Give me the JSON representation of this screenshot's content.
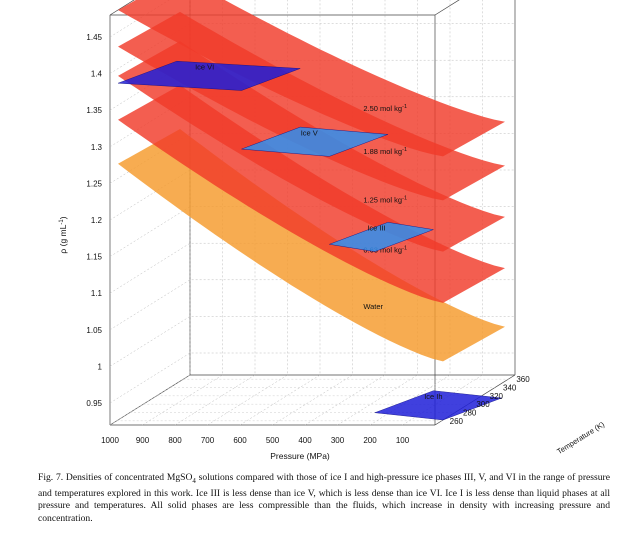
{
  "chart_data": {
    "type": "3d-surface",
    "xlabel": "Pressure (MPa)",
    "ylabel": "ρ (g mL",
    "ylabel_sup": "-1",
    "ylabel_close": ")",
    "zlabel": "Temperature (K)",
    "x_ticks": [
      "1000",
      "900",
      "800",
      "700",
      "600",
      "500",
      "400",
      "300",
      "200",
      "100"
    ],
    "y_ticks": [
      "0.95",
      "1",
      "1.05",
      "1.1",
      "1.15",
      "1.2",
      "1.25",
      "1.3",
      "1.35",
      "1.4",
      "1.45"
    ],
    "z_ticks": [
      "260",
      "280",
      "300",
      "320",
      "340",
      "360"
    ],
    "xlim": [
      0,
      1000
    ],
    "ylim": [
      0.92,
      1.48
    ],
    "zlim": [
      250,
      370
    ],
    "grid": true,
    "colors": {
      "fluid": "#f03a2a",
      "water": "#f59a2b",
      "ice_dark": "#1f1fd8",
      "ice_light": "#2f8ff0"
    },
    "series": [
      {
        "name": "2.50 mol kg",
        "sup": "-1",
        "kind": "fluid",
        "density_at_0MPa": 1.28,
        "density_at_1000MPa": 1.48
      },
      {
        "name": "1.88 mol kg",
        "sup": "-1",
        "kind": "fluid",
        "density_at_0MPa": 1.22,
        "density_at_1000MPa": 1.43
      },
      {
        "name": "1.25 mol kg",
        "sup": "-1",
        "kind": "fluid",
        "density_at_0MPa": 1.15,
        "density_at_1000MPa": 1.39
      },
      {
        "name": "0.63 mol kg",
        "sup": "-1",
        "kind": "fluid",
        "density_at_0MPa": 1.08,
        "density_at_1000MPa": 1.33
      },
      {
        "name": "Water",
        "sup": "",
        "kind": "water",
        "density_at_0MPa": 1.0,
        "density_at_1000MPa": 1.27
      },
      {
        "name": "Ice VI",
        "sup": "",
        "kind": "ice",
        "pressure_range": [
          620,
          1000
        ],
        "density": 1.38
      },
      {
        "name": "Ice V",
        "sup": "",
        "kind": "ice",
        "pressure_range": [
          350,
          620
        ],
        "density": 1.29
      },
      {
        "name": "Ice III",
        "sup": "",
        "kind": "ice",
        "pressure_range": [
          210,
          350
        ],
        "density": 1.16
      },
      {
        "name": "Ice Ih",
        "sup": "",
        "kind": "ice",
        "pressure_range": [
          0,
          210
        ],
        "density": 0.93
      }
    ]
  },
  "caption": {
    "fig": "Fig. 7.",
    "text_a": " Densities of concentrated MgSO",
    "sub": "4",
    "text_b": " solutions compared with those of ice I and high-pressure ice phases III, V, and VI in the range of pressure and temperatures explored in this work. Ice III is less dense than ice V, which is less dense than ice VI. Ice I is less dense than liquid phases at all pressure and temperatures. All solid phases are less compressible than the fluids, which increase in density with increasing pressure and concentration."
  }
}
